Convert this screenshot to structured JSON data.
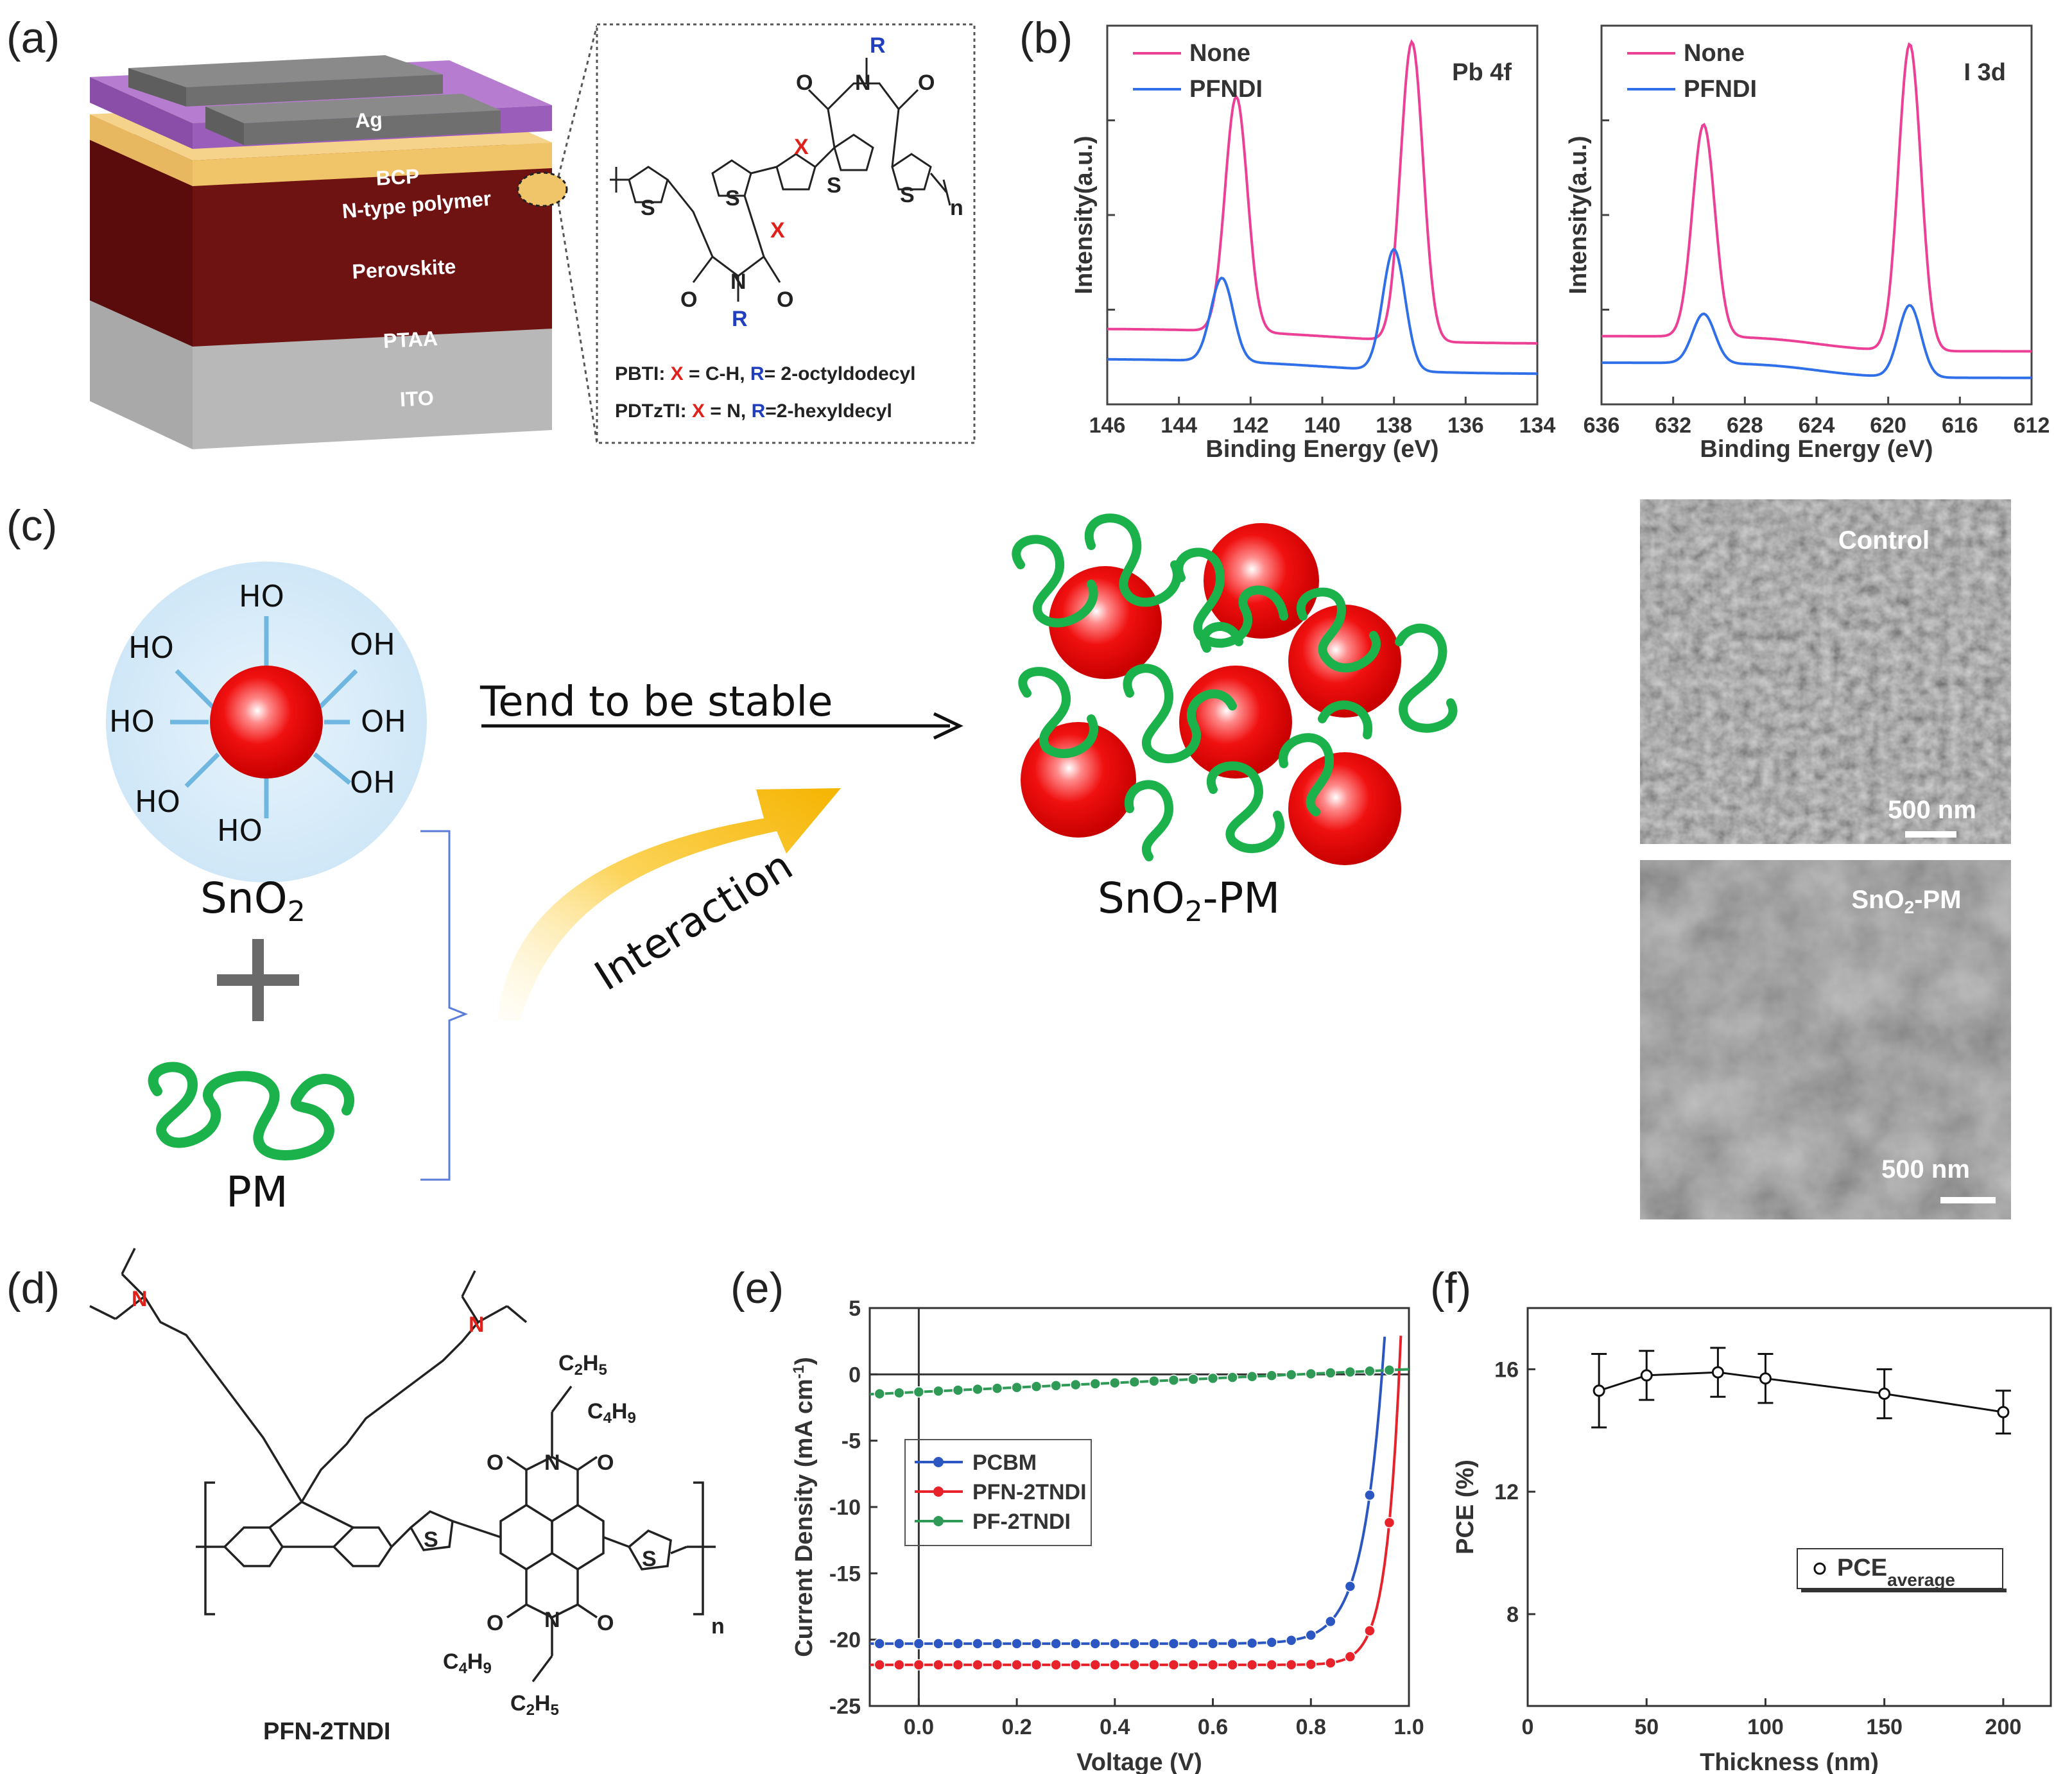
{
  "panels": {
    "a": "(a)",
    "b": "(b)",
    "c": "(c)",
    "d": "(d)",
    "e": "(e)",
    "f": "(f)"
  },
  "panel_a": {
    "layers": {
      "ag": "Ag",
      "bcp": "BCP",
      "ntype": "N-type polymer",
      "perovskite": "Perovskite",
      "ptaa": "PTAA",
      "ito": "ITO"
    },
    "molecule": {
      "R": "R",
      "X": "X",
      "S": "S",
      "n": "n",
      "O": "O",
      "N": "N",
      "pbti_name": "PBTI:",
      "pbti_x": "X",
      "pbti_x_val": "= C-H,",
      "pbti_r": "R",
      "pbti_r_val": "= 2-octyldodecyl",
      "pdt_name": "PDTzTI:",
      "pdt_x": "X",
      "pdt_x_val": "= N,",
      "pdt_r": "R",
      "pdt_r_val": "=2-hexyldecyl"
    }
  },
  "panel_c": {
    "tend": "Tend to be stable",
    "interaction": "Interaction",
    "sno2_label": "SnO",
    "sno2_sub": "2",
    "pm_label": "PM",
    "sno2pm_label": "SnO",
    "sno2pm_sub": "2",
    "sno2pm_suffix": "-PM",
    "ho": "HO",
    "oh": "OH",
    "sem_top_label": "Control",
    "sem_top_scale": "500 nm",
    "sem_bottom_label": "SnO",
    "sem_bottom_sub": "2",
    "sem_bottom_suffix": "-PM",
    "sem_bottom_scale": "500 nm"
  },
  "panel_d": {
    "name": "PFN-2TNDI",
    "n": "n",
    "c2h5": "C",
    "c2h5_sub": "2",
    "c2h5_h": "H",
    "c2h5_sub2": "5",
    "c4h9": "C",
    "c4h9_sub": "4",
    "c4h9_h": "H",
    "c4h9_sub2": "9",
    "N": "N",
    "O": "O",
    "S": "S"
  },
  "chart_data": [
    {
      "id": "b-left",
      "type": "line",
      "title": "Pb 4f",
      "xlabel": "Binding Energy (eV)",
      "ylabel": "Intensity(a.u.)",
      "xlim": [
        146,
        134
      ],
      "x_ticks": [
        146,
        144,
        142,
        140,
        138,
        136,
        134
      ],
      "ylim": [
        0,
        1
      ],
      "legend": [
        "None",
        "PFNDI"
      ],
      "legend_position": "top-left",
      "series": [
        {
          "name": "None",
          "color": "#ec3f96",
          "peaks": [
            [
              142.4,
              0.78
            ],
            [
              137.5,
              0.95
            ]
          ],
          "baseline": 0.16
        },
        {
          "name": "PFNDI",
          "color": "#2f6fe8",
          "peaks": [
            [
              142.8,
              0.3
            ],
            [
              138.0,
              0.4
            ]
          ],
          "baseline": 0.08
        }
      ]
    },
    {
      "id": "b-right",
      "type": "line",
      "title": "I 3d",
      "xlabel": "Binding Energy (eV)",
      "ylabel": "Intensity(a.u.)",
      "xlim": [
        636,
        612
      ],
      "x_ticks": [
        636,
        632,
        628,
        624,
        620,
        616,
        612
      ],
      "ylim": [
        0,
        1
      ],
      "legend": [
        "None",
        "PFNDI"
      ],
      "legend_position": "top-left",
      "series": [
        {
          "name": "None",
          "color": "#ec3f96",
          "peaks": [
            [
              630.3,
              0.7
            ],
            [
              618.8,
              0.95
            ]
          ],
          "baseline": 0.14
        },
        {
          "name": "PFNDI",
          "color": "#2f6fe8",
          "peaks": [
            [
              630.3,
              0.2
            ],
            [
              618.8,
              0.26
            ]
          ],
          "baseline": 0.07
        }
      ]
    },
    {
      "id": "e",
      "type": "line",
      "xlabel": "Voltage (V)",
      "ylabel": "Current Density (mA cm",
      "ylabel_sup": "-1",
      "ylabel_end": ")",
      "xlim": [
        -0.1,
        1.0
      ],
      "x_ticks": [
        0.0,
        0.2,
        0.4,
        0.6,
        0.8,
        1.0
      ],
      "ylim": [
        -25,
        5
      ],
      "y_ticks": [
        5,
        0,
        -5,
        -10,
        -15,
        -20,
        -25
      ],
      "legend": [
        "PCBM",
        "PFN-2TNDI",
        "PF-2TNDI"
      ],
      "legend_position": "center-left",
      "series": [
        {
          "name": "PCBM",
          "color": "#2c57c2",
          "jsc": -20.3,
          "voc": 0.945,
          "a": 0.042
        },
        {
          "name": "PFN-2TNDI",
          "color": "#e8222a",
          "jsc": -21.9,
          "voc": 0.98,
          "a": 0.028
        },
        {
          "name": "PF-2TNDI",
          "color": "#2e9a55",
          "start": -1.5,
          "end": 0.3
        }
      ]
    },
    {
      "id": "f",
      "type": "scatter",
      "xlabel": "Thickness (nm)",
      "ylabel": "PCE (%)",
      "xlim": [
        0,
        220
      ],
      "x_ticks": [
        0,
        50,
        100,
        150,
        200
      ],
      "ylim": [
        5,
        18
      ],
      "y_ticks": [
        8,
        12,
        16
      ],
      "legend": [
        "PCE"
      ],
      "legend_sub": "average",
      "legend_position": "center-right",
      "x": [
        30,
        50,
        80,
        100,
        150,
        200
      ],
      "y": [
        15.3,
        15.8,
        15.9,
        15.7,
        15.2,
        14.6
      ],
      "err": [
        1.2,
        0.8,
        0.8,
        0.8,
        0.8,
        0.7
      ]
    }
  ]
}
